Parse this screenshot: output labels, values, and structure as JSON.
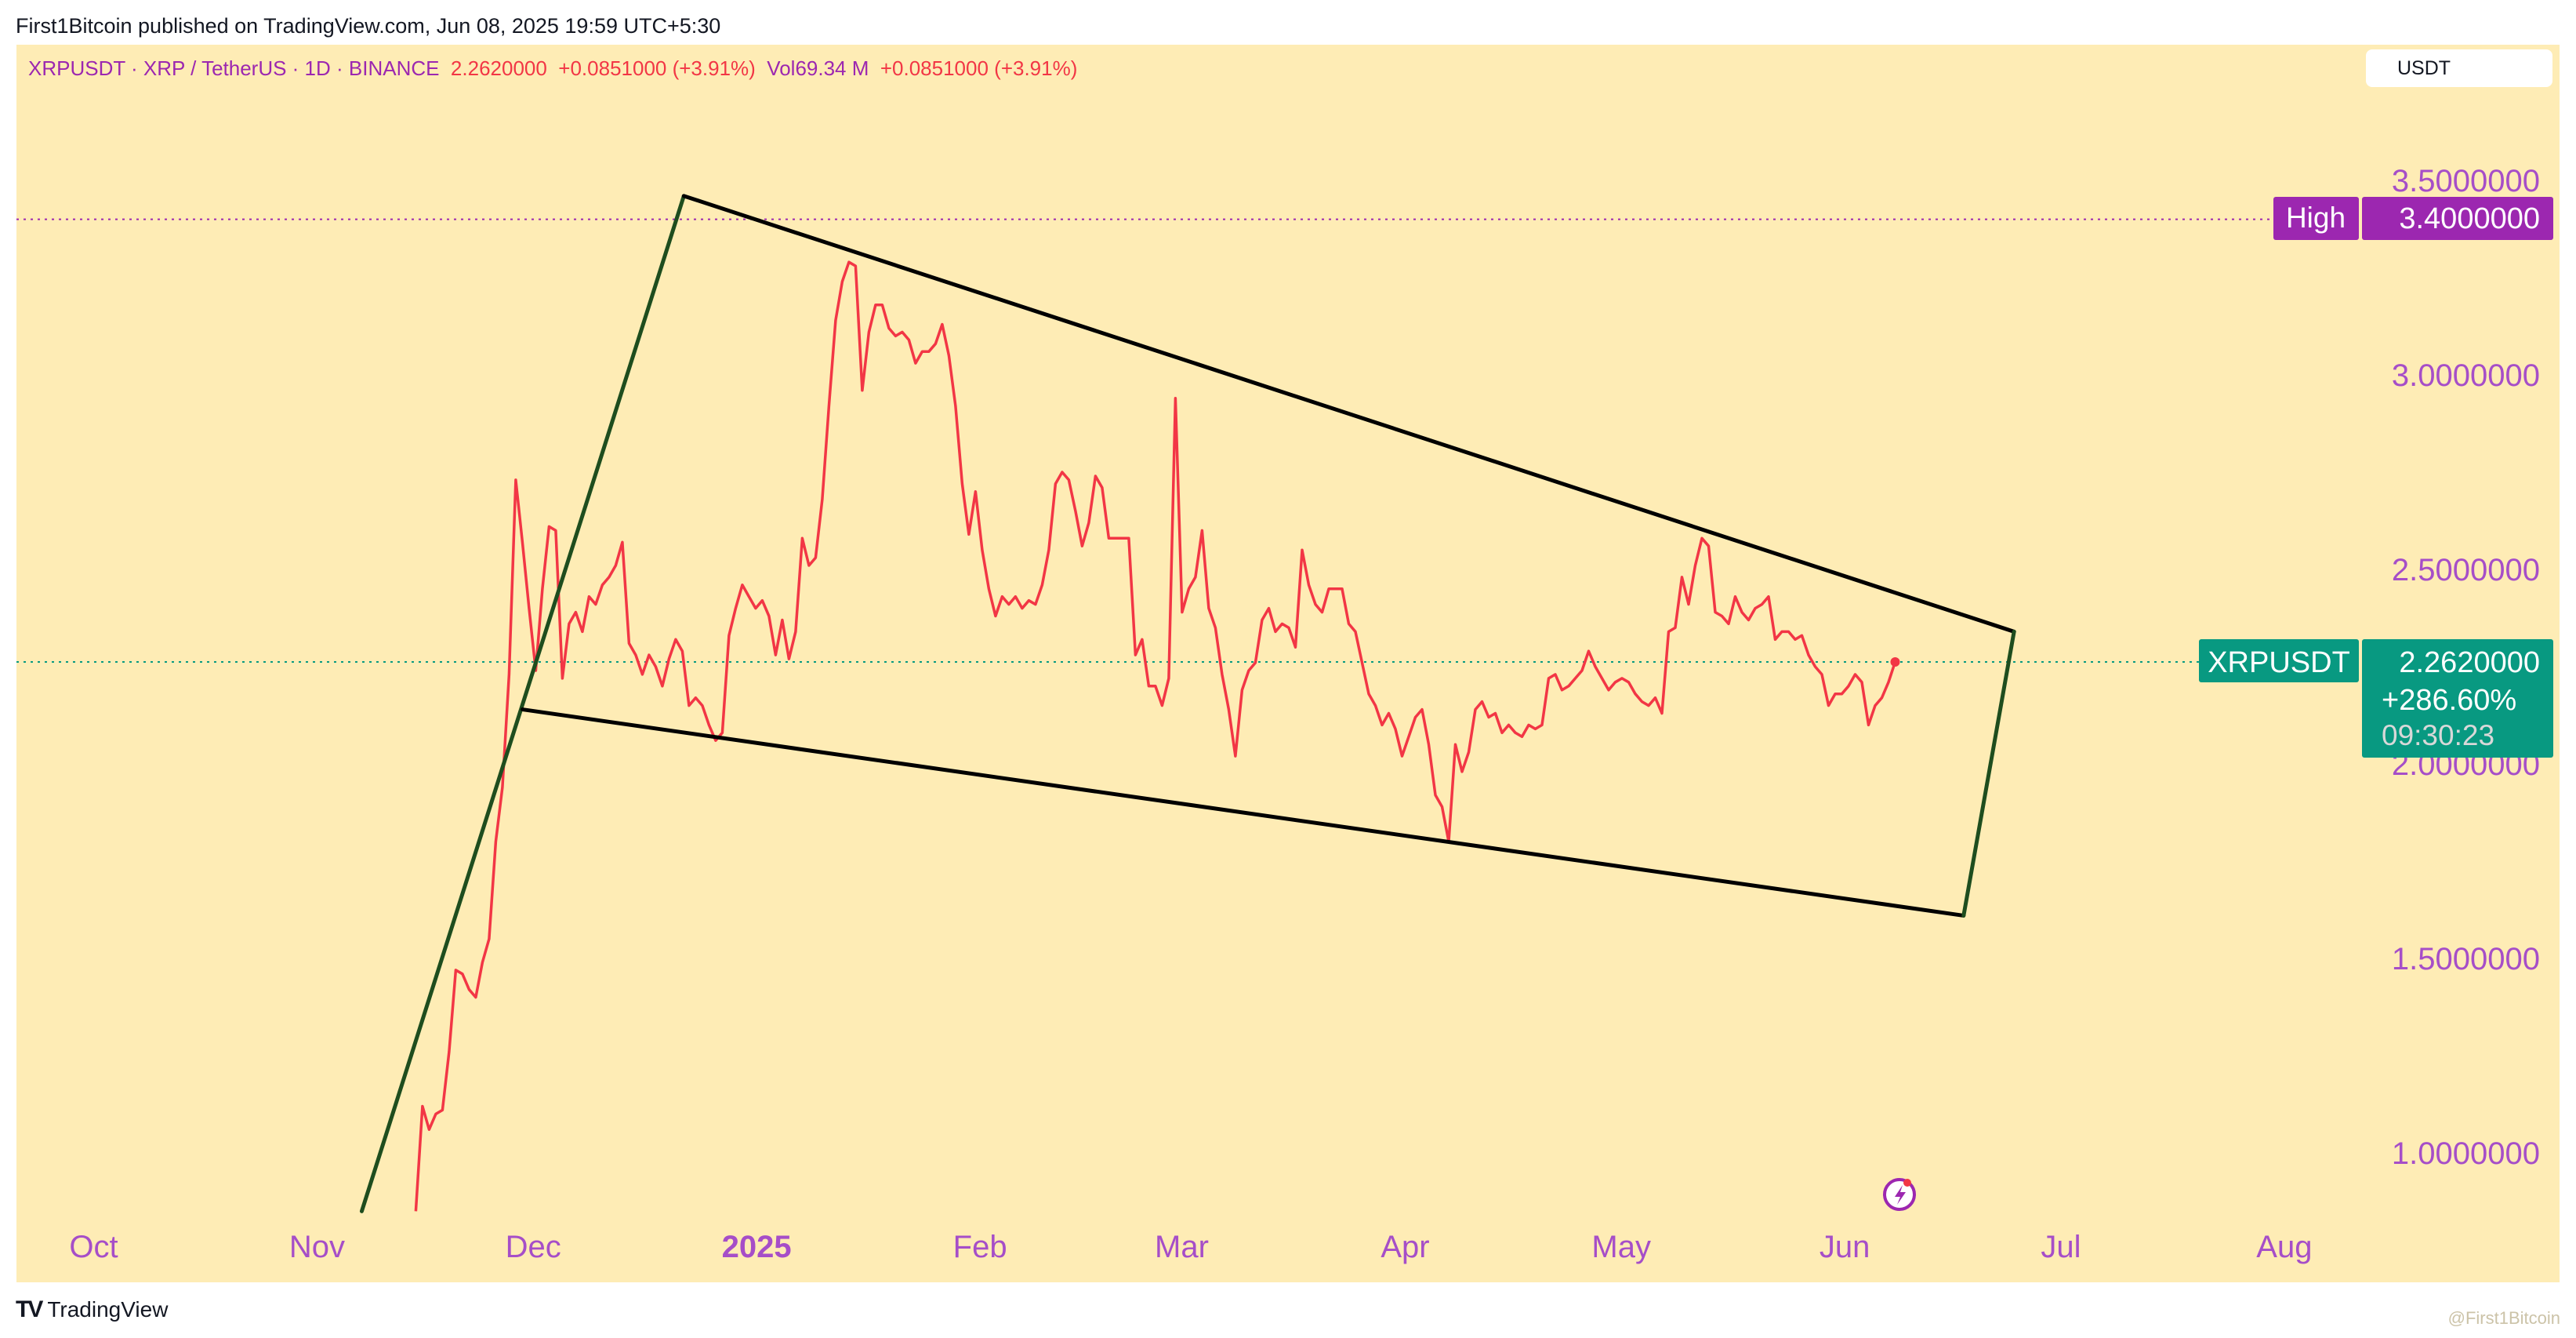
{
  "header": {
    "published": "First1Bitcoin published on TradingView.com, Jun 08, 2025 19:59 UTC+5:30",
    "symbol_info": "XRPUSDT · XRP / TetherUS · 1D · BINANCE",
    "price": "2.2620000",
    "change": "+0.0851000 (+3.91%)",
    "vol_label": "Vol",
    "vol_value": "69.34 M",
    "vol_change": "+0.0851000 (+3.91%)"
  },
  "currency_button": "USDT",
  "footer": {
    "logo": "TV",
    "brand": "TradingView",
    "watermark": "@First1Bitcoin"
  },
  "colors": {
    "background": "#feecb5",
    "line": "#f23645",
    "axis_text": "#a64ec8",
    "high": "#9c27b0",
    "last": "#089981",
    "trend_green": "#1e4d1e",
    "trend_black": "#000000"
  },
  "chart_data": {
    "type": "line",
    "title": "XRPUSDT · XRP / TetherUS · 1D · BINANCE",
    "x_unit": "days since 2024-10-01",
    "ylim": [
      0.85,
      3.75
    ],
    "xlim": [
      -6,
      323
    ],
    "y_ticks": [
      "3.5000000",
      "3.0000000",
      "2.5000000",
      "2.0000000",
      "1.5000000",
      "1.0000000"
    ],
    "y_tick_values": [
      3.5,
      3.0,
      2.5,
      2.0,
      1.5,
      1.0
    ],
    "x_ticks": [
      {
        "label": "Oct",
        "day": 0
      },
      {
        "label": "Nov",
        "day": 31
      },
      {
        "label": "Dec",
        "day": 61
      },
      {
        "label": "2025",
        "day": 92,
        "bold": true
      },
      {
        "label": "Feb",
        "day": 123
      },
      {
        "label": "Mar",
        "day": 151
      },
      {
        "label": "Apr",
        "day": 182
      },
      {
        "label": "May",
        "day": 212
      },
      {
        "label": "Jun",
        "day": 243
      },
      {
        "label": "Jul",
        "day": 273
      },
      {
        "label": "Aug",
        "day": 304
      }
    ],
    "series": [
      {
        "name": "XRPUSDT",
        "start_day": 44.7,
        "end_day": 250,
        "values": [
          0.85,
          1.12,
          1.06,
          1.1,
          1.11,
          1.26,
          1.47,
          1.46,
          1.42,
          1.4,
          1.49,
          1.55,
          1.8,
          1.94,
          2.23,
          2.73,
          2.57,
          2.4,
          2.24,
          2.45,
          2.61,
          2.6,
          2.22,
          2.36,
          2.39,
          2.34,
          2.43,
          2.41,
          2.46,
          2.48,
          2.51,
          2.57,
          2.31,
          2.28,
          2.23,
          2.28,
          2.25,
          2.2,
          2.27,
          2.32,
          2.29,
          2.15,
          2.17,
          2.15,
          2.1,
          2.06,
          2.08,
          2.33,
          2.4,
          2.46,
          2.43,
          2.4,
          2.42,
          2.38,
          2.28,
          2.37,
          2.27,
          2.34,
          2.58,
          2.51,
          2.53,
          2.68,
          2.92,
          3.14,
          3.24,
          3.29,
          3.28,
          2.96,
          3.11,
          3.18,
          3.18,
          3.12,
          3.1,
          3.11,
          3.09,
          3.03,
          3.06,
          3.06,
          3.08,
          3.13,
          3.05,
          2.92,
          2.72,
          2.59,
          2.7,
          2.55,
          2.45,
          2.38,
          2.43,
          2.41,
          2.43,
          2.4,
          2.42,
          2.41,
          2.46,
          2.55,
          2.72,
          2.75,
          2.73,
          2.65,
          2.56,
          2.62,
          2.74,
          2.71,
          2.58,
          2.58,
          2.58,
          2.58,
          2.28,
          2.32,
          2.2,
          2.2,
          2.15,
          2.22,
          2.94,
          2.39,
          2.45,
          2.48,
          2.6,
          2.4,
          2.35,
          2.23,
          2.14,
          2.02,
          2.19,
          2.24,
          2.26,
          2.37,
          2.4,
          2.34,
          2.36,
          2.35,
          2.3,
          2.55,
          2.46,
          2.41,
          2.39,
          2.45,
          2.45,
          2.45,
          2.36,
          2.34,
          2.26,
          2.18,
          2.15,
          2.1,
          2.13,
          2.09,
          2.02,
          2.07,
          2.12,
          2.14,
          2.05,
          1.92,
          1.89,
          1.8,
          2.05,
          1.98,
          2.03,
          2.14,
          2.16,
          2.12,
          2.13,
          2.08,
          2.1,
          2.08,
          2.07,
          2.1,
          2.09,
          2.1,
          2.22,
          2.23,
          2.19,
          2.2,
          2.22,
          2.24,
          2.29,
          2.25,
          2.22,
          2.19,
          2.21,
          2.22,
          2.21,
          2.18,
          2.16,
          2.15,
          2.17,
          2.13,
          2.34,
          2.35,
          2.48,
          2.41,
          2.51,
          2.58,
          2.56,
          2.39,
          2.38,
          2.36,
          2.43,
          2.39,
          2.37,
          2.4,
          2.41,
          2.43,
          2.32,
          2.34,
          2.34,
          2.32,
          2.33,
          2.28,
          2.25,
          2.23,
          2.15,
          2.18,
          2.18,
          2.2,
          2.23,
          2.21,
          2.1,
          2.15,
          2.17,
          2.21,
          2.262
        ]
      }
    ],
    "trendlines": [
      {
        "name": "green-rising",
        "color": "green",
        "from": [
          37.2,
          0.85
        ],
        "to": [
          81.9,
          3.46
        ]
      },
      {
        "name": "upper-resistance",
        "color": "black",
        "from": [
          81.9,
          3.46
        ],
        "to": [
          266.5,
          2.34
        ]
      },
      {
        "name": "lower-support",
        "color": "black",
        "from": [
          59.5,
          2.14
        ],
        "to": [
          259.5,
          1.61
        ]
      },
      {
        "name": "green-closing",
        "color": "green",
        "from": [
          266.5,
          2.34
        ],
        "to": [
          259.5,
          1.61
        ]
      }
    ],
    "high": {
      "label": "High",
      "value": 3.4,
      "text": "3.4000000"
    },
    "last": {
      "label": "XRPUSDT",
      "value": 2.262,
      "text": "2.2620000",
      "change_pct": "+286.60%",
      "countdown": "09:30:23"
    }
  }
}
